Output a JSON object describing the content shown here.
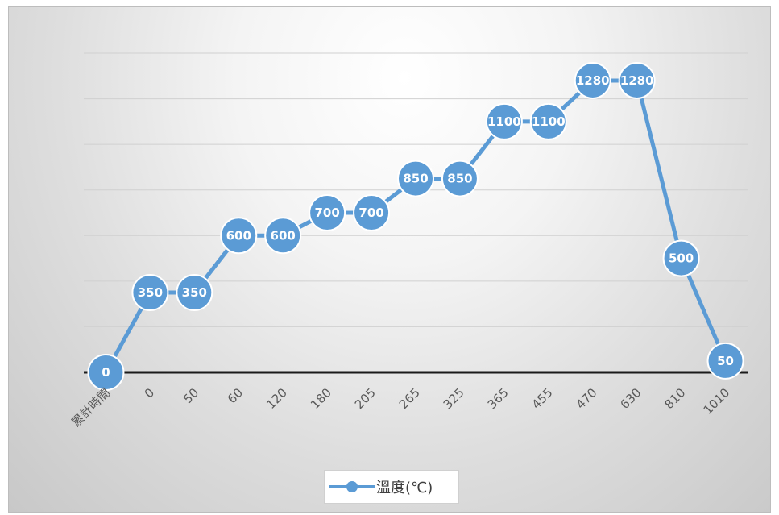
{
  "chart_data": {
    "type": "line",
    "categories": [
      "累計時間",
      "0",
      "50",
      "60",
      "120",
      "180",
      "205",
      "265",
      "325",
      "365",
      "455",
      "470",
      "630",
      "810",
      "1010"
    ],
    "series": [
      {
        "name": "溫度(℃)",
        "values": [
          0,
          350,
          350,
          600,
          600,
          700,
          700,
          850,
          850,
          1100,
          1100,
          1280,
          1280,
          500,
          50
        ]
      }
    ],
    "ylim": [
      0,
      1400
    ],
    "grid": true,
    "legend": "bottom",
    "show_data_labels": true,
    "colors": {
      "series": "#5b9bd5",
      "gridline": "#d0d0d0",
      "axis": "#1a1a1a"
    }
  }
}
